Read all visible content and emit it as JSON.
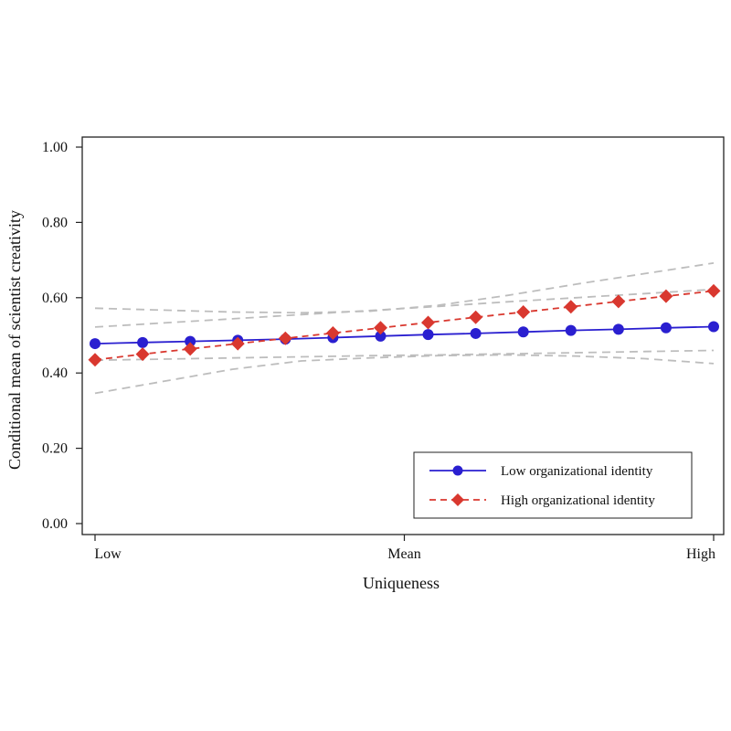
{
  "chart_data": {
    "type": "line",
    "title": "",
    "xlabel": "Uniqueness",
    "ylabel": "Conditional mean of scientist creativity",
    "x_tick_labels": [
      "Low",
      "Mean",
      "High"
    ],
    "y_tick_labels": [
      "0.00",
      "0.20",
      "0.40",
      "0.60",
      "0.80",
      "1.00"
    ],
    "ylim": [
      0,
      1
    ],
    "grid": false,
    "legend_position": "bottom-right",
    "series": [
      {
        "name": "Low organizational identity",
        "color": "#2a1fd0",
        "marker": "circle",
        "line": "solid",
        "values": [
          0.478,
          0.481,
          0.484,
          0.487,
          0.49,
          0.494,
          0.498,
          0.502,
          0.505,
          0.509,
          0.513,
          0.516,
          0.52,
          0.523
        ]
      },
      {
        "name": "High organizational identity",
        "color": "#d9382f",
        "marker": "diamond",
        "line": "dashed",
        "values": [
          0.435,
          0.45,
          0.464,
          0.478,
          0.492,
          0.506,
          0.52,
          0.534,
          0.548,
          0.562,
          0.576,
          0.59,
          0.604,
          0.618
        ]
      }
    ],
    "confidence_bands": [
      {
        "series": "Low organizational identity",
        "color": "#bdbdbd",
        "upper": [
          0.522,
          0.533,
          0.544,
          0.555,
          0.566,
          0.577,
          0.589,
          0.6,
          0.611,
          0.622
        ],
        "lower": [
          0.434,
          0.437,
          0.44,
          0.443,
          0.446,
          0.448,
          0.451,
          0.454,
          0.457,
          0.46
        ]
      },
      {
        "series": "High organizational identity",
        "color": "#bdbdbd",
        "upper": [
          0.572,
          0.567,
          0.562,
          0.56,
          0.564,
          0.58,
          0.606,
          0.636,
          0.664,
          0.692
        ],
        "lower": [
          0.346,
          0.378,
          0.41,
          0.432,
          0.44,
          0.446,
          0.448,
          0.445,
          0.438,
          0.425
        ]
      }
    ]
  }
}
